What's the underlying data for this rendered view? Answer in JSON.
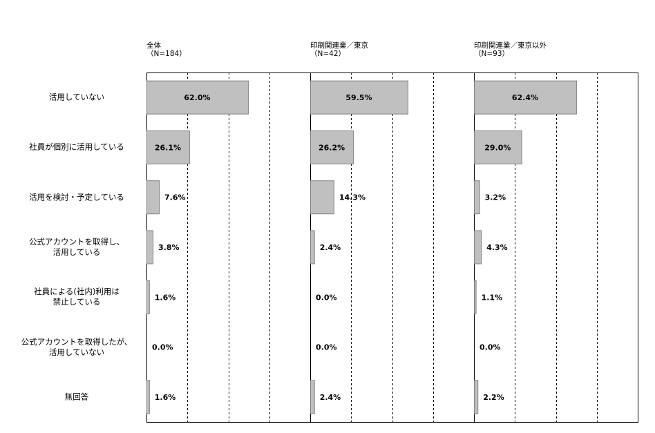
{
  "chart_data": {
    "type": "bar",
    "orientation": "horizontal",
    "xlim": [
      0,
      100
    ],
    "grid": "vertical dashed",
    "bar_color": "#c0c0c0",
    "bar_edge_color": "#808080",
    "categories": [
      [
        "活用していない"
      ],
      [
        "社員が個別に活用している"
      ],
      [
        "活用を検討・予定している"
      ],
      [
        "公式アカウントを取得し、",
        "活用している"
      ],
      [
        "社員による(社内)利用は",
        "禁止している"
      ],
      [
        "公式アカウントを取得したが、",
        "活用していない"
      ],
      [
        "無回答"
      ]
    ],
    "panels": [
      {
        "title": [
          "全体",
          "（N=184）"
        ],
        "values": [
          62.0,
          26.1,
          7.6,
          3.8,
          1.6,
          0.0,
          1.6
        ],
        "labels": [
          "62.0%",
          "26.1%",
          "7.6%",
          "3.8%",
          "1.6%",
          "0.0%",
          "1.6%"
        ]
      },
      {
        "title": [
          "印刷関連業／東京",
          "（N=42）"
        ],
        "values": [
          59.5,
          26.2,
          14.3,
          2.4,
          0.0,
          0.0,
          2.4
        ],
        "labels": [
          "59.5%",
          "26.2%",
          "14.3%",
          "2.4%",
          "0.0%",
          "0.0%",
          "2.4%"
        ]
      },
      {
        "title": [
          "印刷関連業／東京以外",
          "（N=93）"
        ],
        "values": [
          62.4,
          29.0,
          3.2,
          4.3,
          1.1,
          0.0,
          2.2
        ],
        "labels": [
          "62.4%",
          "29.0%",
          "3.2%",
          "4.3%",
          "1.1%",
          "0.0%",
          "2.2%"
        ]
      }
    ]
  }
}
